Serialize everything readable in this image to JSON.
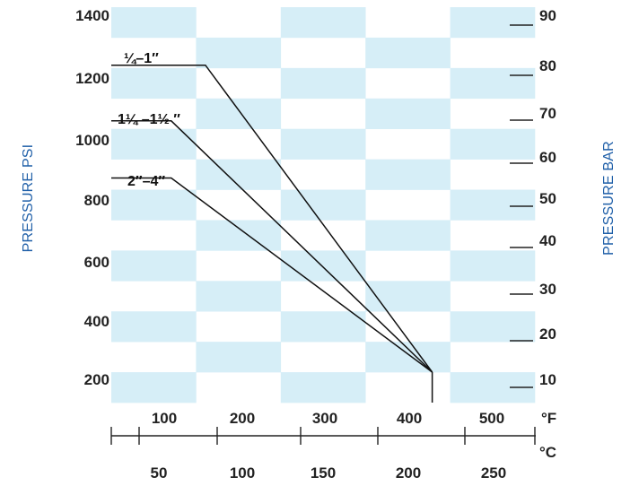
{
  "chart_data": {
    "type": "line",
    "ylabel_left": "PRESSURE PSI",
    "ylabel_right": "PRESSURE BAR",
    "x_unit_top": "°F",
    "x_unit_bottom": "°C",
    "x_ticks_f": [
      "100",
      "200",
      "300",
      "400",
      "500"
    ],
    "x_ticks_c": [
      "50",
      "100",
      "150",
      "200",
      "250"
    ],
    "y_ticks_psi": [
      "1400",
      "1200",
      "1000",
      "800",
      "600",
      "400",
      "200"
    ],
    "y_ticks_bar": [
      "90",
      "80",
      "70",
      "60",
      "50",
      "40",
      "30",
      "20",
      "10"
    ],
    "xlim_f": [
      -10,
      510
    ],
    "ylim_psi": [
      150,
      1400
    ],
    "background": {
      "checker_color": "#d6eef7"
    },
    "series": [
      {
        "name": "¼–1″",
        "label_parts": [
          "¼",
          "–1″"
        ],
        "x": [
          -10,
          100,
          365
        ],
        "y": [
          1225,
          1225,
          150
        ],
        "color": "#111111"
      },
      {
        "name": "1¼ –1½ ″",
        "label_parts": [
          "1¼",
          " –1½ ″"
        ],
        "x": [
          -10,
          60,
          365
        ],
        "y": [
          1030,
          1030,
          150
        ],
        "color": "#111111"
      },
      {
        "name": "2″–4″",
        "label_parts": [
          "2″–4″"
        ],
        "x": [
          -10,
          60,
          365
        ],
        "y": [
          830,
          830,
          150
        ],
        "color": "#111111"
      }
    ],
    "drop_line": {
      "x": 365,
      "y": [
        0,
        150
      ]
    }
  }
}
